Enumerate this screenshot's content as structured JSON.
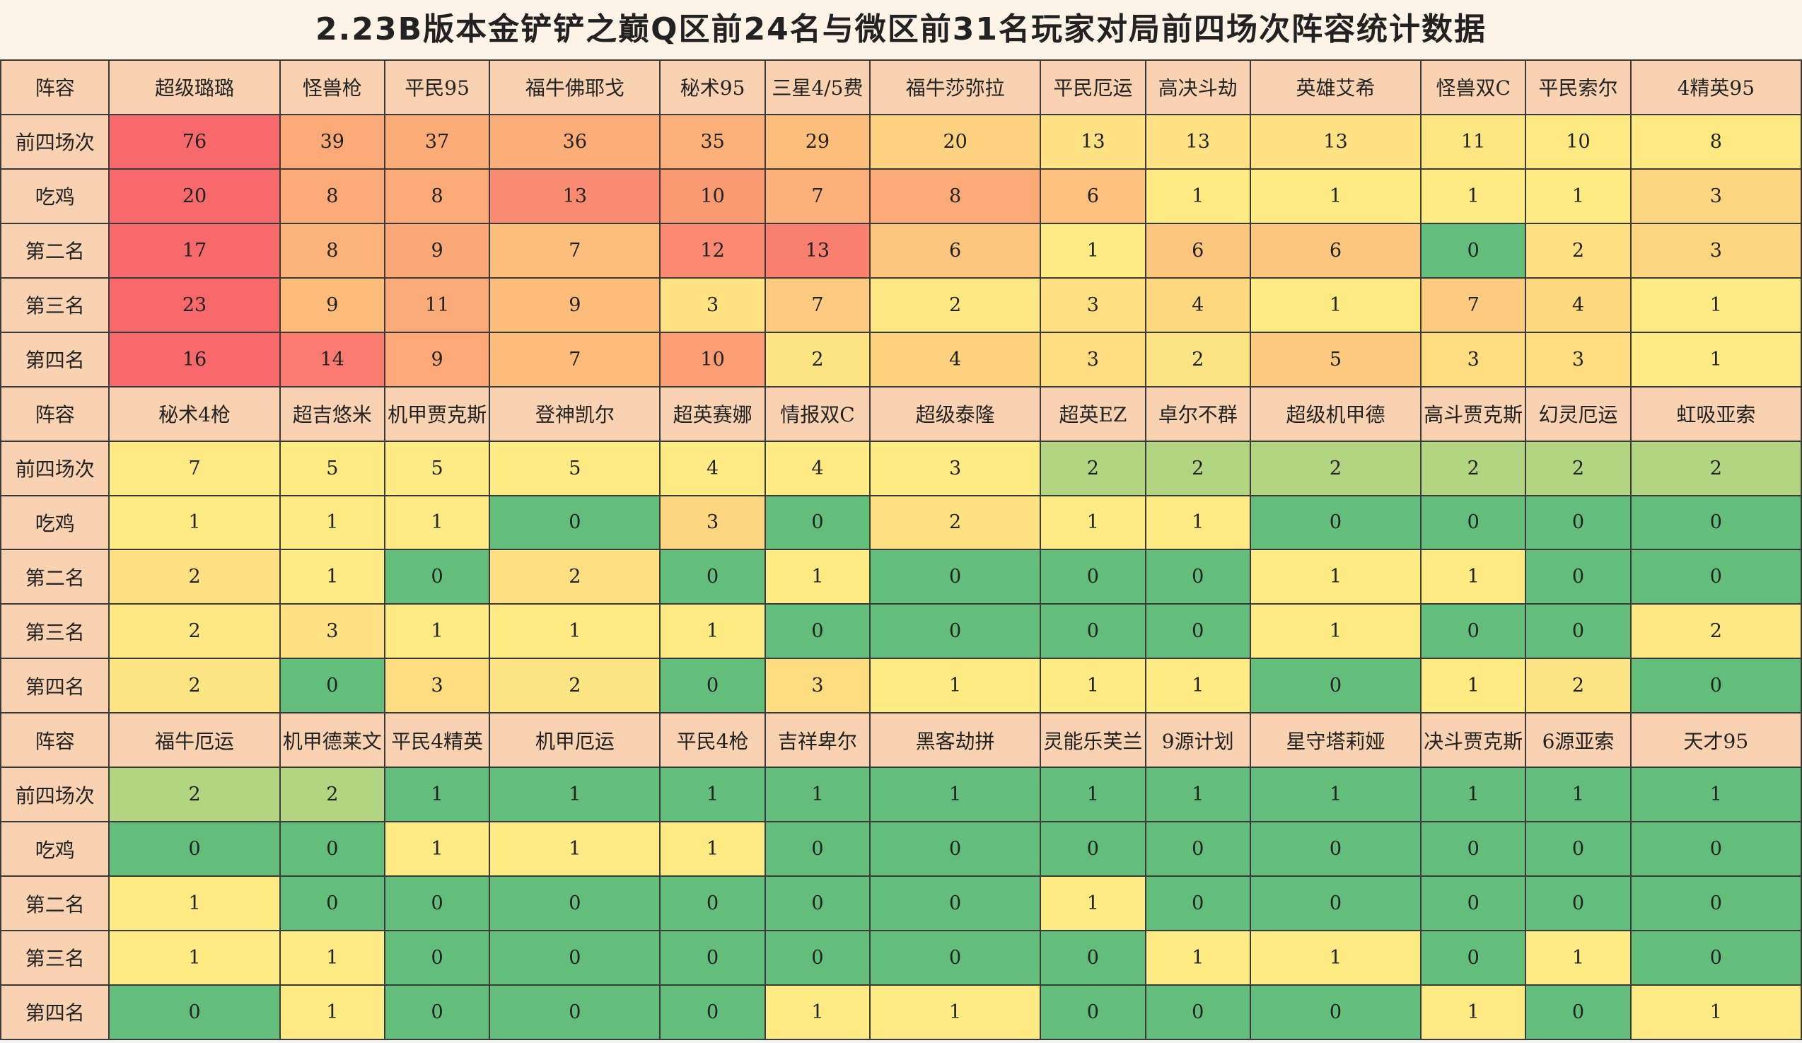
{
  "title": "2.23B版本金铲铲之巅Q区前24名与微区前31名玩家对局前四场次阵容统计数据",
  "row_labels": [
    "阵容",
    "前四场次",
    "吃鸡",
    "第二名",
    "第三名",
    "第四名"
  ],
  "blocks": [
    {
      "comps": [
        "超级璐璐",
        "怪兽枪",
        "平民95",
        "福牛佛耶戈",
        "秘术95",
        "三星4/5费",
        "福牛莎弥拉",
        "平民厄运",
        "高决斗劫",
        "英雄艾希",
        "怪兽双C",
        "平民索尔",
        "4精英95"
      ],
      "rows": [
        [
          "76",
          "39",
          "37",
          "36",
          "35",
          "29",
          "20",
          "13",
          "13",
          "13",
          "11",
          "10",
          "8"
        ],
        [
          "20",
          "8",
          "8",
          "13",
          "10",
          "7",
          "8",
          "6",
          "1",
          "1",
          "1",
          "1",
          "3"
        ],
        [
          "17",
          "8",
          "9",
          "7",
          "12",
          "13",
          "6",
          "1",
          "6",
          "6",
          "0",
          "2",
          "3"
        ],
        [
          "23",
          "9",
          "11",
          "9",
          "3",
          "7",
          "2",
          "3",
          "4",
          "1",
          "7",
          "4",
          "1"
        ],
        [
          "16",
          "14",
          "9",
          "7",
          "10",
          "2",
          "4",
          "3",
          "2",
          "5",
          "3",
          "3",
          "1"
        ]
      ],
      "colors": [
        [
          "#f8696b",
          "#fba976",
          "#fbac77",
          "#fbae78",
          "#fbb079",
          "#fcbe7b",
          "#fdd280",
          "#fee283",
          "#fee283",
          "#fee283",
          "#fee783",
          "#fee983",
          "#fee983"
        ],
        [
          "#f8696b",
          "#fba976",
          "#fba976",
          "#f98b71",
          "#fa9a73",
          "#fcb07a",
          "#fba976",
          "#fdc07d",
          "#ffeb84",
          "#ffeb84",
          "#ffeb84",
          "#ffeb84",
          "#fed580"
        ],
        [
          "#f8696b",
          "#fcb37a",
          "#fba877",
          "#fcbe7c",
          "#fa8a71",
          "#f97f6f",
          "#fdc67e",
          "#ffeb84",
          "#fdc67e",
          "#fdc67e",
          "#63be7b",
          "#fee082",
          "#fed680"
        ],
        [
          "#f8696b",
          "#fcbd7b",
          "#fbab77",
          "#fcbd7b",
          "#ffe383",
          "#fdcb7f",
          "#fee883",
          "#fee081",
          "#fed97f",
          "#ffeb84",
          "#fdcb7f",
          "#fed97f",
          "#ffeb84"
        ],
        [
          "#f8696b",
          "#f97a6e",
          "#fca977",
          "#fcbd7b",
          "#fb9e75",
          "#fee583",
          "#fed37f",
          "#fedd81",
          "#fee583",
          "#fdc97e",
          "#fedd81",
          "#fedd81",
          "#ffeb84"
        ]
      ]
    },
    {
      "comps": [
        "秘术4枪",
        "超吉悠米",
        "机甲贾克斯",
        "登神凯尔",
        "超英赛娜",
        "情报双C",
        "超级泰隆",
        "超英EZ",
        "卓尔不群",
        "超级机甲德",
        "高斗贾克斯",
        "幻灵厄运",
        "虹吸亚索"
      ],
      "rows": [
        [
          "7",
          "5",
          "5",
          "5",
          "4",
          "4",
          "3",
          "2",
          "2",
          "2",
          "2",
          "2",
          "2"
        ],
        [
          "1",
          "1",
          "1",
          "0",
          "3",
          "0",
          "2",
          "1",
          "1",
          "0",
          "0",
          "0",
          "0"
        ],
        [
          "2",
          "1",
          "0",
          "2",
          "0",
          "1",
          "0",
          "0",
          "0",
          "1",
          "1",
          "0",
          "0"
        ],
        [
          "2",
          "3",
          "1",
          "1",
          "1",
          "0",
          "0",
          "0",
          "0",
          "1",
          "0",
          "0",
          "2"
        ],
        [
          "2",
          "0",
          "3",
          "2",
          "0",
          "3",
          "1",
          "1",
          "1",
          "0",
          "1",
          "2",
          "0"
        ]
      ],
      "colors": [
        [
          "#feea84",
          "#ffeb84",
          "#ffeb84",
          "#ffeb84",
          "#ffeb84",
          "#ffeb84",
          "#ffeb84",
          "#b1d580",
          "#b1d580",
          "#b1d580",
          "#b1d580",
          "#b1d580",
          "#b1d580"
        ],
        [
          "#ffeb84",
          "#ffeb84",
          "#ffeb84",
          "#63be7b",
          "#fed680",
          "#63be7b",
          "#fee282",
          "#ffeb84",
          "#ffeb84",
          "#63be7b",
          "#63be7b",
          "#63be7b",
          "#63be7b"
        ],
        [
          "#fee082",
          "#ffeb84",
          "#63be7b",
          "#fee082",
          "#63be7b",
          "#ffeb84",
          "#63be7b",
          "#63be7b",
          "#63be7b",
          "#ffeb84",
          "#ffeb84",
          "#63be7b",
          "#63be7b"
        ],
        [
          "#fee883",
          "#fee283",
          "#ffeb84",
          "#ffeb84",
          "#ffeb84",
          "#63be7b",
          "#63be7b",
          "#63be7b",
          "#63be7b",
          "#ffeb84",
          "#63be7b",
          "#63be7b",
          "#fee883"
        ],
        [
          "#fee583",
          "#63be7b",
          "#fedd81",
          "#fee583",
          "#63be7b",
          "#fedd81",
          "#ffeb84",
          "#ffeb84",
          "#ffeb84",
          "#63be7b",
          "#ffeb84",
          "#fee583",
          "#63be7b"
        ]
      ]
    },
    {
      "comps": [
        "福牛厄运",
        "机甲德莱文",
        "平民4精英",
        "机甲厄运",
        "平民4枪",
        "吉祥卑尔",
        "黑客劫拼",
        "灵能乐芙兰",
        "9源计划",
        "星守塔莉娅",
        "决斗贾克斯",
        "6源亚索",
        "天才95"
      ],
      "rows": [
        [
          "2",
          "2",
          "1",
          "1",
          "1",
          "1",
          "1",
          "1",
          "1",
          "1",
          "1",
          "1",
          "1"
        ],
        [
          "0",
          "0",
          "1",
          "1",
          "1",
          "0",
          "0",
          "0",
          "0",
          "0",
          "0",
          "0",
          "0"
        ],
        [
          "1",
          "0",
          "0",
          "0",
          "0",
          "0",
          "0",
          "1",
          "0",
          "0",
          "0",
          "0",
          "0"
        ],
        [
          "1",
          "1",
          "0",
          "0",
          "0",
          "0",
          "0",
          "0",
          "1",
          "1",
          "0",
          "1",
          "0"
        ],
        [
          "0",
          "1",
          "0",
          "0",
          "0",
          "1",
          "1",
          "0",
          "0",
          "0",
          "1",
          "0",
          "1"
        ]
      ],
      "colors": [
        [
          "#b1d580",
          "#b1d580",
          "#63be7b",
          "#63be7b",
          "#63be7b",
          "#63be7b",
          "#63be7b",
          "#63be7b",
          "#63be7b",
          "#63be7b",
          "#63be7b",
          "#63be7b",
          "#63be7b"
        ],
        [
          "#63be7b",
          "#63be7b",
          "#ffeb84",
          "#ffeb84",
          "#ffeb84",
          "#63be7b",
          "#63be7b",
          "#63be7b",
          "#63be7b",
          "#63be7b",
          "#63be7b",
          "#63be7b",
          "#63be7b"
        ],
        [
          "#ffeb84",
          "#63be7b",
          "#63be7b",
          "#63be7b",
          "#63be7b",
          "#63be7b",
          "#63be7b",
          "#ffeb84",
          "#63be7b",
          "#63be7b",
          "#63be7b",
          "#63be7b",
          "#63be7b"
        ],
        [
          "#ffeb84",
          "#ffeb84",
          "#63be7b",
          "#63be7b",
          "#63be7b",
          "#63be7b",
          "#63be7b",
          "#63be7b",
          "#ffeb84",
          "#ffeb84",
          "#63be7b",
          "#ffeb84",
          "#63be7b"
        ],
        [
          "#63be7b",
          "#ffeb84",
          "#63be7b",
          "#63be7b",
          "#63be7b",
          "#ffeb84",
          "#ffeb84",
          "#63be7b",
          "#63be7b",
          "#63be7b",
          "#ffeb84",
          "#63be7b",
          "#ffeb84"
        ]
      ]
    }
  ]
}
